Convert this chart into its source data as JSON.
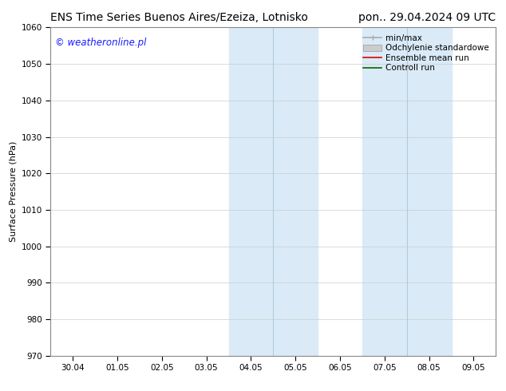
{
  "title_left": "ENS Time Series Buenos Aires/Ezeiza, Lotnisko",
  "title_right": "pon.. 29.04.2024 09 UTC",
  "ylabel": "Surface Pressure (hPa)",
  "ylim": [
    970,
    1060
  ],
  "yticks": [
    970,
    980,
    990,
    1000,
    1010,
    1020,
    1030,
    1040,
    1050,
    1060
  ],
  "xtick_labels": [
    "30.04",
    "01.05",
    "02.05",
    "03.05",
    "04.05",
    "05.05",
    "06.05",
    "07.05",
    "08.05",
    "09.05"
  ],
  "xtick_positions": [
    0,
    1,
    2,
    3,
    4,
    5,
    6,
    7,
    8,
    9
  ],
  "xlim": [
    -0.5,
    9.5
  ],
  "shaded_regions": [
    {
      "xstart": 3.5,
      "xend": 5.5,
      "color": "#daeaf7"
    },
    {
      "xstart": 6.5,
      "xend": 8.5,
      "color": "#daeaf7"
    }
  ],
  "shade_dividers": [
    4.5,
    7.5
  ],
  "watermark_text": "© weatheronline.pl",
  "watermark_color": "#1a1aff",
  "background_color": "#ffffff",
  "plot_bg_color": "#ffffff",
  "title_fontsize": 10,
  "axis_label_fontsize": 8,
  "tick_fontsize": 7.5,
  "legend_fontsize": 7.5,
  "watermark_fontsize": 8.5,
  "legend_minmax_color": "#aaaaaa",
  "legend_std_color": "#cccccc",
  "legend_ensemble_color": "#dd0000",
  "legend_control_color": "#006600",
  "grid_color": "#cccccc",
  "spine_color": "#888888"
}
